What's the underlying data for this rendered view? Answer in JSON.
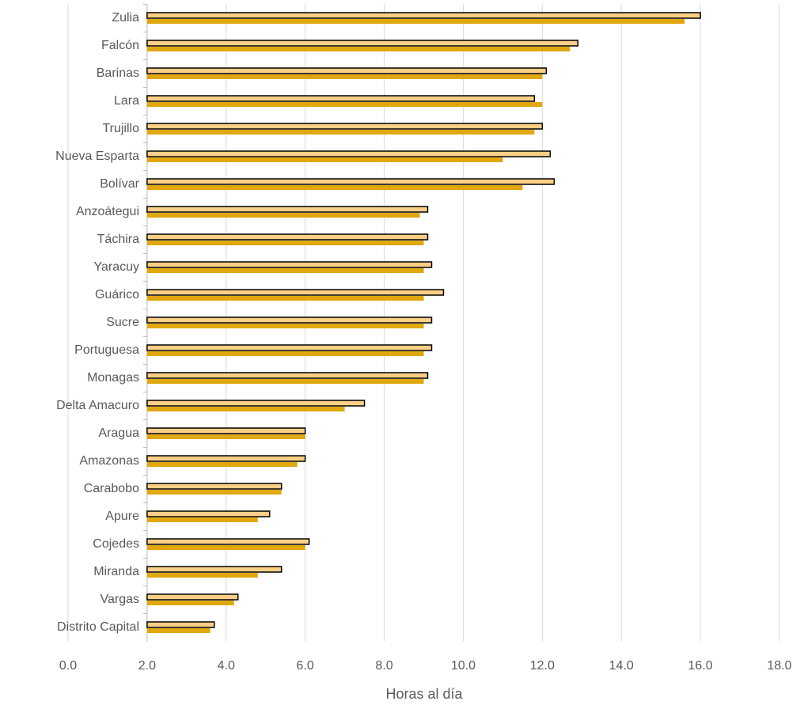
{
  "chart_data": {
    "type": "barh",
    "categories": [
      "Zulia",
      "Falcón",
      "Barinas",
      "Lara",
      "Trujillo",
      "Nueva Esparta",
      "Bolívar",
      "Anzoátegui",
      "Táchira",
      "Yaracuy",
      "Guárico",
      "Sucre",
      "Portuguesa",
      "Monagas",
      "Delta Amacuro",
      "Aragua",
      "Amazonas",
      "Carabobo",
      "Apure",
      "Cojedes",
      "Miranda",
      "Vargas",
      "Distrito Capital"
    ],
    "series": [
      {
        "color": "#fbcf86",
        "values": [
          16.0,
          12.9,
          12.1,
          11.8,
          12.0,
          12.2,
          12.3,
          9.1,
          9.1,
          9.2,
          9.5,
          9.2,
          9.2,
          9.1,
          7.5,
          6.0,
          6.0,
          5.4,
          5.1,
          6.1,
          5.4,
          4.3,
          3.7
        ]
      },
      {
        "color": "#e0a70e",
        "values": [
          15.6,
          12.7,
          12.0,
          12.0,
          11.8,
          11.0,
          11.5,
          8.9,
          9.0,
          9.0,
          9.0,
          9.0,
          9.0,
          9.0,
          7.0,
          6.0,
          5.8,
          5.4,
          4.8,
          6.0,
          4.8,
          4.2,
          3.6
        ]
      }
    ],
    "x_label": "Horas al día",
    "xlim": [
      0,
      18
    ],
    "bar_base": 2,
    "xticks": [
      {
        "value": 0,
        "label": "0.0"
      },
      {
        "value": 2,
        "label": "2.0"
      },
      {
        "value": 4,
        "label": "4.0"
      },
      {
        "value": 6,
        "label": "6.0"
      },
      {
        "value": 8,
        "label": "8.0"
      },
      {
        "value": 10,
        "label": "10.0"
      },
      {
        "value": 12,
        "label": "12.0"
      },
      {
        "value": 14,
        "label": "14.0"
      },
      {
        "value": 16,
        "label": "16.0"
      },
      {
        "value": 18,
        "label": "18.0"
      }
    ],
    "grid": true
  }
}
